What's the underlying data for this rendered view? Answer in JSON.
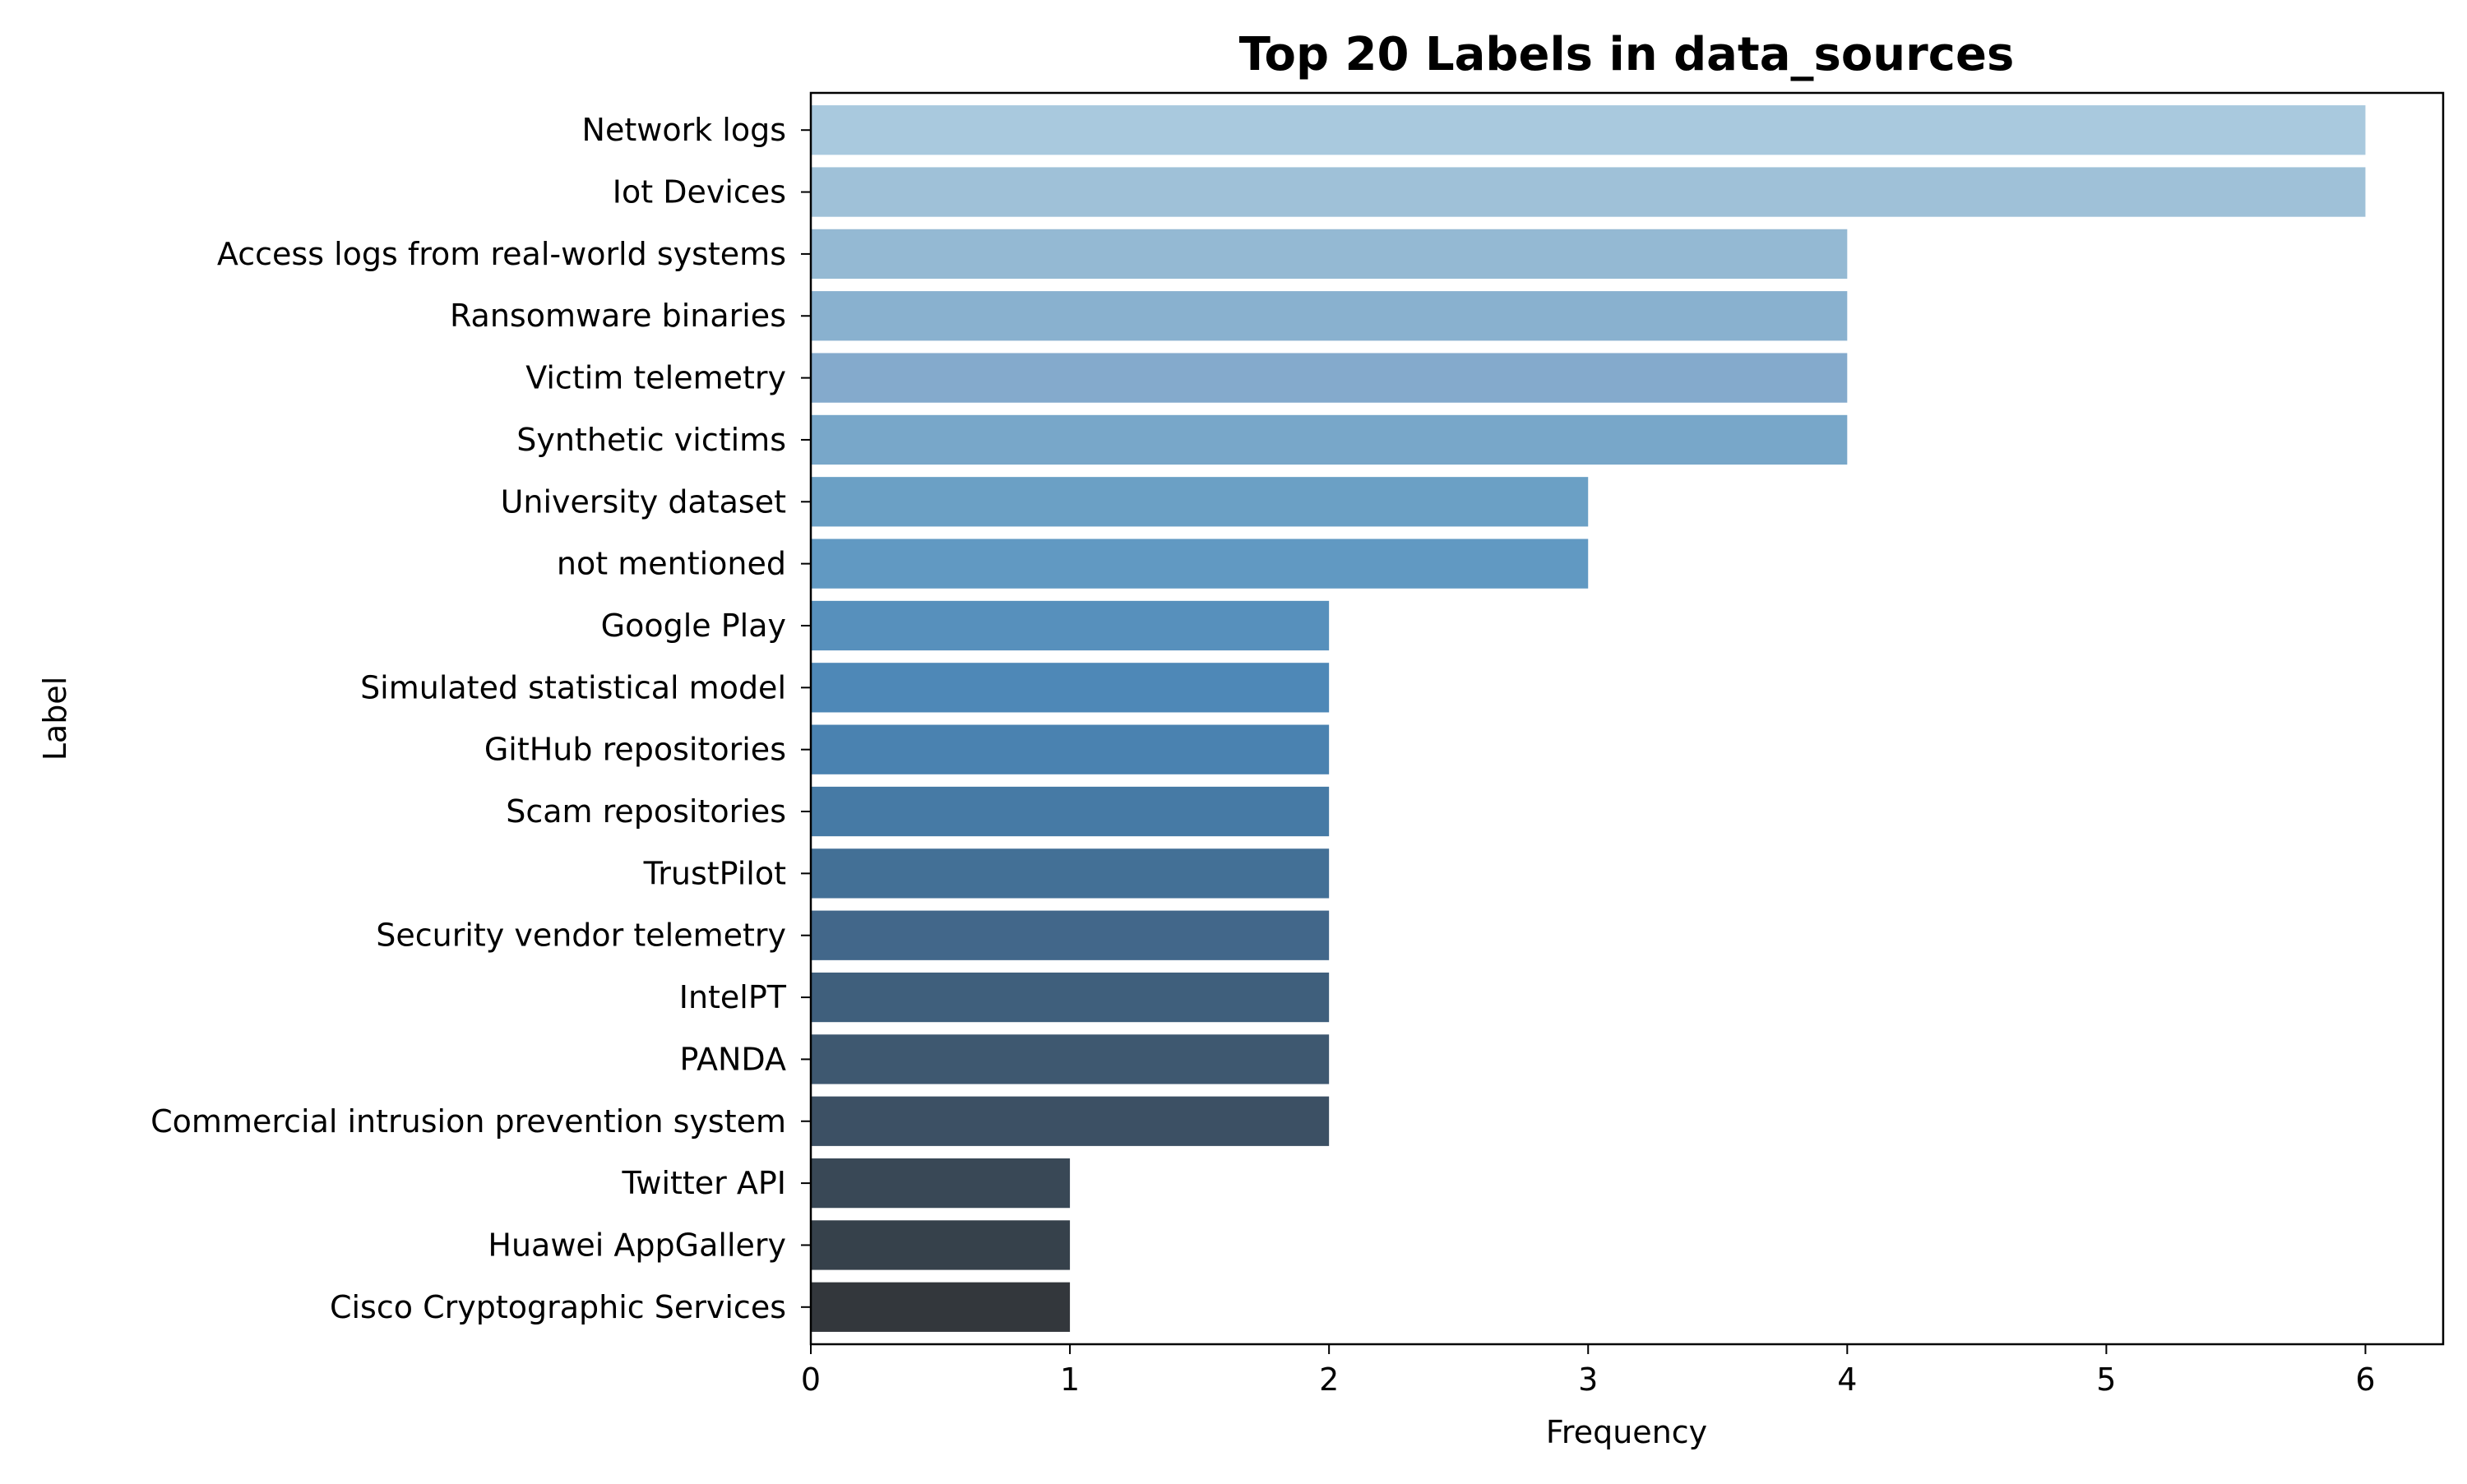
{
  "chart_data": {
    "type": "bar",
    "orientation": "horizontal",
    "title": "Top 20 Labels in data_sources",
    "xlabel": "Frequency",
    "ylabel": "Label",
    "xlim": [
      0,
      6.3
    ],
    "xticks": [
      0,
      1,
      2,
      3,
      4,
      5,
      6
    ],
    "grid": false,
    "categories": [
      "Network logs",
      "Iot Devices",
      "Access logs from real-world systems",
      "Ransomware binaries",
      "Victim telemetry",
      "Synthetic victims",
      "University dataset",
      "not mentioned",
      "Google Play",
      "Simulated statistical model",
      "GitHub repositories",
      "Scam repositories",
      "TrustPilot",
      "Security vendor telemetry",
      "IntelPT",
      "PANDA",
      "Commercial intrusion prevention system",
      "Twitter API",
      "Huawei AppGallery",
      "Cisco Cryptographic Services"
    ],
    "values": [
      6,
      6,
      4,
      4,
      4,
      4,
      3,
      3,
      2,
      2,
      2,
      2,
      2,
      2,
      2,
      2,
      2,
      1,
      1,
      1
    ],
    "colors": [
      "#a9c9de",
      "#9fc1d8",
      "#94b9d3",
      "#89b1cf",
      "#84aacc",
      "#78a7c9",
      "#6ba0c5",
      "#6199c2",
      "#5790bc",
      "#4e88b7",
      "#4a82b0",
      "#467aa5",
      "#437096",
      "#42678a",
      "#3f5f7c",
      "#3e5870",
      "#3c5064",
      "#394856",
      "#36414b",
      "#33373c"
    ]
  }
}
